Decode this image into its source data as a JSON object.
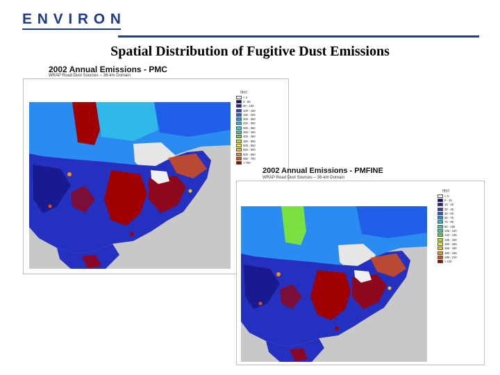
{
  "header": {
    "logo_letters": [
      "E",
      "N",
      "V",
      "I",
      "R",
      "O",
      "N"
    ],
    "logo_color": "#1f3b8c",
    "title": "Spatial Distribution of Fugitive Dust Emissions"
  },
  "panels": [
    {
      "id": "pmc",
      "title": "2002 Annual Emissions - PMC",
      "subtitle": "WRAP Road Dust Sources -- 36-km Domain",
      "unit": "(tpy)",
      "legend": [
        {
          "label": "< 0",
          "color": "#f0f0f0"
        },
        {
          "label": "0 - 50",
          "color": "#101070"
        },
        {
          "label": "50 - 100",
          "color": "#2020a8"
        },
        {
          "label": "100 - 150",
          "color": "#2a40d8"
        },
        {
          "label": "150 - 200",
          "color": "#2060f0"
        },
        {
          "label": "200 - 250",
          "color": "#2090f0"
        },
        {
          "label": "250 - 300",
          "color": "#20b8e8"
        },
        {
          "label": "300 - 350",
          "color": "#30d0c8"
        },
        {
          "label": "350 - 400",
          "color": "#40c890"
        },
        {
          "label": "400 - 450",
          "color": "#60d040"
        },
        {
          "label": "450 - 500",
          "color": "#b0e020"
        },
        {
          "label": "500 - 550",
          "color": "#f0f020"
        },
        {
          "label": "550 - 600",
          "color": "#f0c020"
        },
        {
          "label": "600 - 650",
          "color": "#f09020"
        },
        {
          "label": "650 - 700",
          "color": "#e05010"
        },
        {
          "label": "> 700",
          "color": "#a00000"
        }
      ]
    },
    {
      "id": "pmfine",
      "title": "2002 Annual Emissions - PMFINE",
      "subtitle": "WRAP Road Dust Sources -- 36-km Domain",
      "unit": "(tpy)",
      "legend": [
        {
          "label": "< 0",
          "color": "#f0f0f0"
        },
        {
          "label": "0 - 15",
          "color": "#101070"
        },
        {
          "label": "15 - 30",
          "color": "#2020a8"
        },
        {
          "label": "30 - 45",
          "color": "#2a40d8"
        },
        {
          "label": "45 - 60",
          "color": "#2060f0"
        },
        {
          "label": "60 - 75",
          "color": "#2090f0"
        },
        {
          "label": "75 - 90",
          "color": "#20b8e8"
        },
        {
          "label": "90 - 105",
          "color": "#30d0c8"
        },
        {
          "label": "105 - 120",
          "color": "#40c890"
        },
        {
          "label": "120 - 135",
          "color": "#60d040"
        },
        {
          "label": "135 - 150",
          "color": "#b0e020"
        },
        {
          "label": "150 - 165",
          "color": "#f0f020"
        },
        {
          "label": "165 - 180",
          "color": "#f0c020"
        },
        {
          "label": "180 - 195",
          "color": "#f09020"
        },
        {
          "label": "195 - 210",
          "color": "#e05010"
        },
        {
          "label": "> 210",
          "color": "#a00000"
        }
      ]
    }
  ]
}
